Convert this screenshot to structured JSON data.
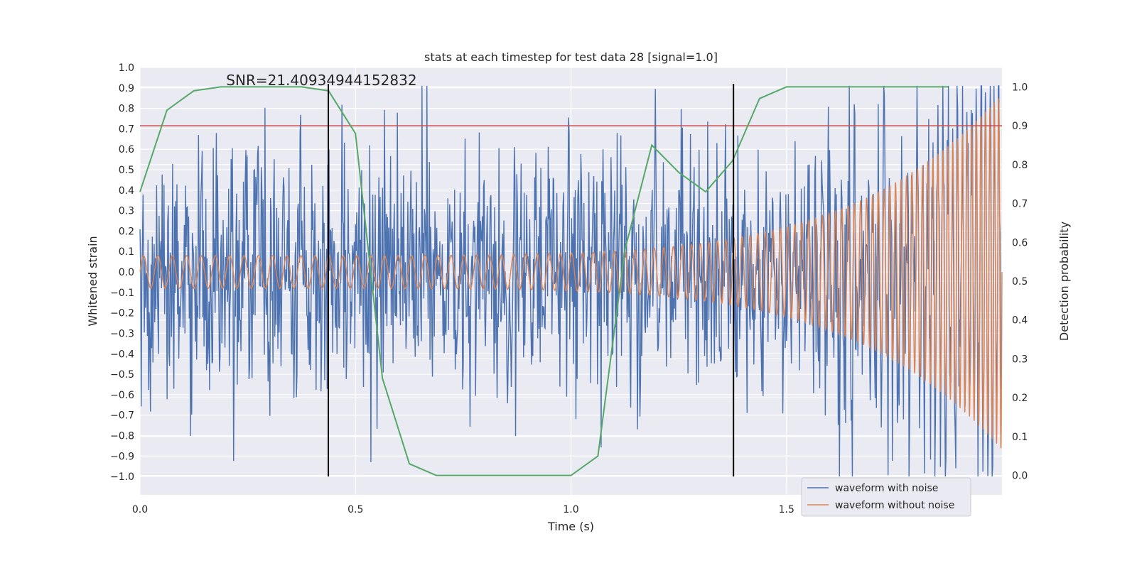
{
  "chart_data": {
    "type": "line",
    "title": "stats at each timestep for test data 28 [signal=1.0]",
    "xlabel": "Time (s)",
    "ylabel": "Whitened strain",
    "y2label": "Detection probability",
    "xlim": [
      0.0,
      2.0
    ],
    "ylim": [
      -1.09,
      1.0
    ],
    "y2lim": [
      -0.05,
      1.05
    ],
    "xticks": [
      0.0,
      0.5,
      1.0,
      1.5
    ],
    "xtick_labels": [
      "0.0",
      "0.5",
      "1.0",
      "1.5"
    ],
    "yticks": [
      -1.0,
      -0.9,
      -0.8,
      -0.7,
      -0.6,
      -0.5,
      -0.4,
      -0.3,
      -0.2,
      -0.1,
      0.0,
      0.1,
      0.2,
      0.3,
      0.4,
      0.5,
      0.6,
      0.7,
      0.8,
      0.9,
      1.0
    ],
    "ytick_labels": [
      "−1.0",
      "−0.9",
      "−0.8",
      "−0.7",
      "−0.6",
      "−0.5",
      "−0.4",
      "−0.3",
      "−0.2",
      "−0.1",
      "0.0",
      "0.1",
      "0.2",
      "0.3",
      "0.4",
      "0.5",
      "0.6",
      "0.7",
      "0.8",
      "0.9",
      "1.0"
    ],
    "y2ticks": [
      0.0,
      0.1,
      0.2,
      0.3,
      0.4,
      0.5,
      0.6,
      0.7,
      0.8,
      0.9,
      1.0
    ],
    "y2tick_labels": [
      "0.0",
      "0.1",
      "0.2",
      "0.3",
      "0.4",
      "0.5",
      "0.6",
      "0.7",
      "0.8",
      "0.9",
      "1.0"
    ],
    "annotation": "SNR=21.40934944152832",
    "annotation_at": {
      "x": 0.2,
      "y": 0.92
    },
    "threshold_y2": 0.9,
    "vlines": [
      0.437,
      1.377
    ],
    "vline_range": [
      -1.0,
      0.92
    ],
    "series": [
      {
        "name": "waveform with noise",
        "color": "#4c72b0",
        "axis": "left",
        "kind": "noise",
        "count": 1400,
        "amplitude_std": 0.3,
        "peak_max": 0.91,
        "peak_min": -1.0
      },
      {
        "name": "waveform without noise",
        "color": "#dd8452",
        "axis": "left",
        "kind": "chirp",
        "amplitude_start": 0.08,
        "amplitude_end": 0.87,
        "frequency_start_hz": 30,
        "frequency_end_hz": 100
      },
      {
        "name": "detection probability",
        "color": "#55a868",
        "axis": "right",
        "kind": "line",
        "x": [
          0.0,
          0.0625,
          0.125,
          0.1875,
          0.25,
          0.3125,
          0.375,
          0.4375,
          0.5,
          0.5625,
          0.625,
          0.6875,
          0.75,
          0.8125,
          0.875,
          0.9375,
          1.0,
          1.0625,
          1.125,
          1.1875,
          1.25,
          1.3125,
          1.375,
          1.4375,
          1.5,
          1.5625,
          1.625,
          1.6875,
          1.75,
          1.8125,
          1.875
        ],
        "values": [
          0.73,
          0.94,
          0.99,
          1.0,
          1.0,
          1.0,
          1.0,
          0.99,
          0.88,
          0.25,
          0.03,
          0.0,
          0.0,
          0.0,
          0.0,
          0.0,
          0.0,
          0.05,
          0.58,
          0.85,
          0.78,
          0.73,
          0.81,
          0.97,
          1.0,
          1.0,
          1.0,
          1.0,
          1.0,
          1.0,
          1.0
        ]
      }
    ],
    "legend": {
      "placement": "lower-right",
      "entries": [
        "waveform with noise",
        "waveform without noise"
      ]
    },
    "grid": true,
    "colors": {
      "background": "#eaeaf2",
      "grid": "#ffffff",
      "threshold": "#c44e52",
      "vline": "#000000",
      "text": "#262626"
    }
  }
}
